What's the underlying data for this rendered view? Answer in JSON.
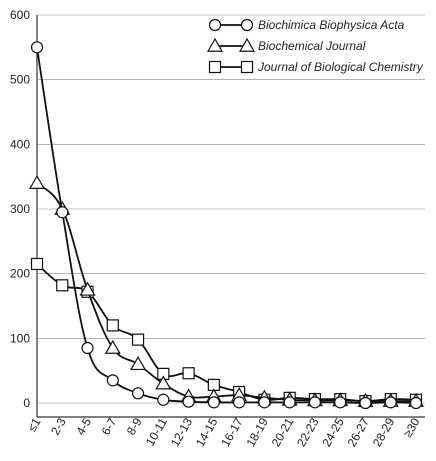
{
  "chart_data": {
    "type": "line",
    "title": "",
    "xlabel": "",
    "ylabel": "",
    "ylim": [
      0,
      600
    ],
    "y_ticks": [
      0,
      100,
      200,
      300,
      400,
      500,
      600
    ],
    "grid": "horizontal",
    "legend_position": "top-right",
    "categories": [
      "≤1",
      "2-3",
      "4-5",
      "6-7",
      "8-9",
      "10-11",
      "12-13",
      "14-15",
      "16-17",
      "18-19",
      "20-21",
      "22-23",
      "24-25",
      "26-27",
      "28-29",
      "≥30"
    ],
    "series": [
      {
        "name": "Biochimica Biophysica Acta",
        "marker": "circle",
        "values": [
          550,
          295,
          85,
          35,
          15,
          5,
          2,
          1,
          1,
          1,
          1,
          1,
          1,
          0,
          1,
          0
        ]
      },
      {
        "name": "Biochemical Journal",
        "marker": "triangle",
        "values": [
          340,
          300,
          175,
          85,
          60,
          30,
          10,
          10,
          12,
          8,
          5,
          4,
          4,
          3,
          3,
          3
        ]
      },
      {
        "name": "Journal of Biological Chemistry",
        "marker": "square",
        "values": [
          215,
          182,
          172,
          120,
          98,
          45,
          46,
          28,
          17,
          5,
          8,
          6,
          6,
          3,
          6,
          5
        ]
      }
    ]
  }
}
